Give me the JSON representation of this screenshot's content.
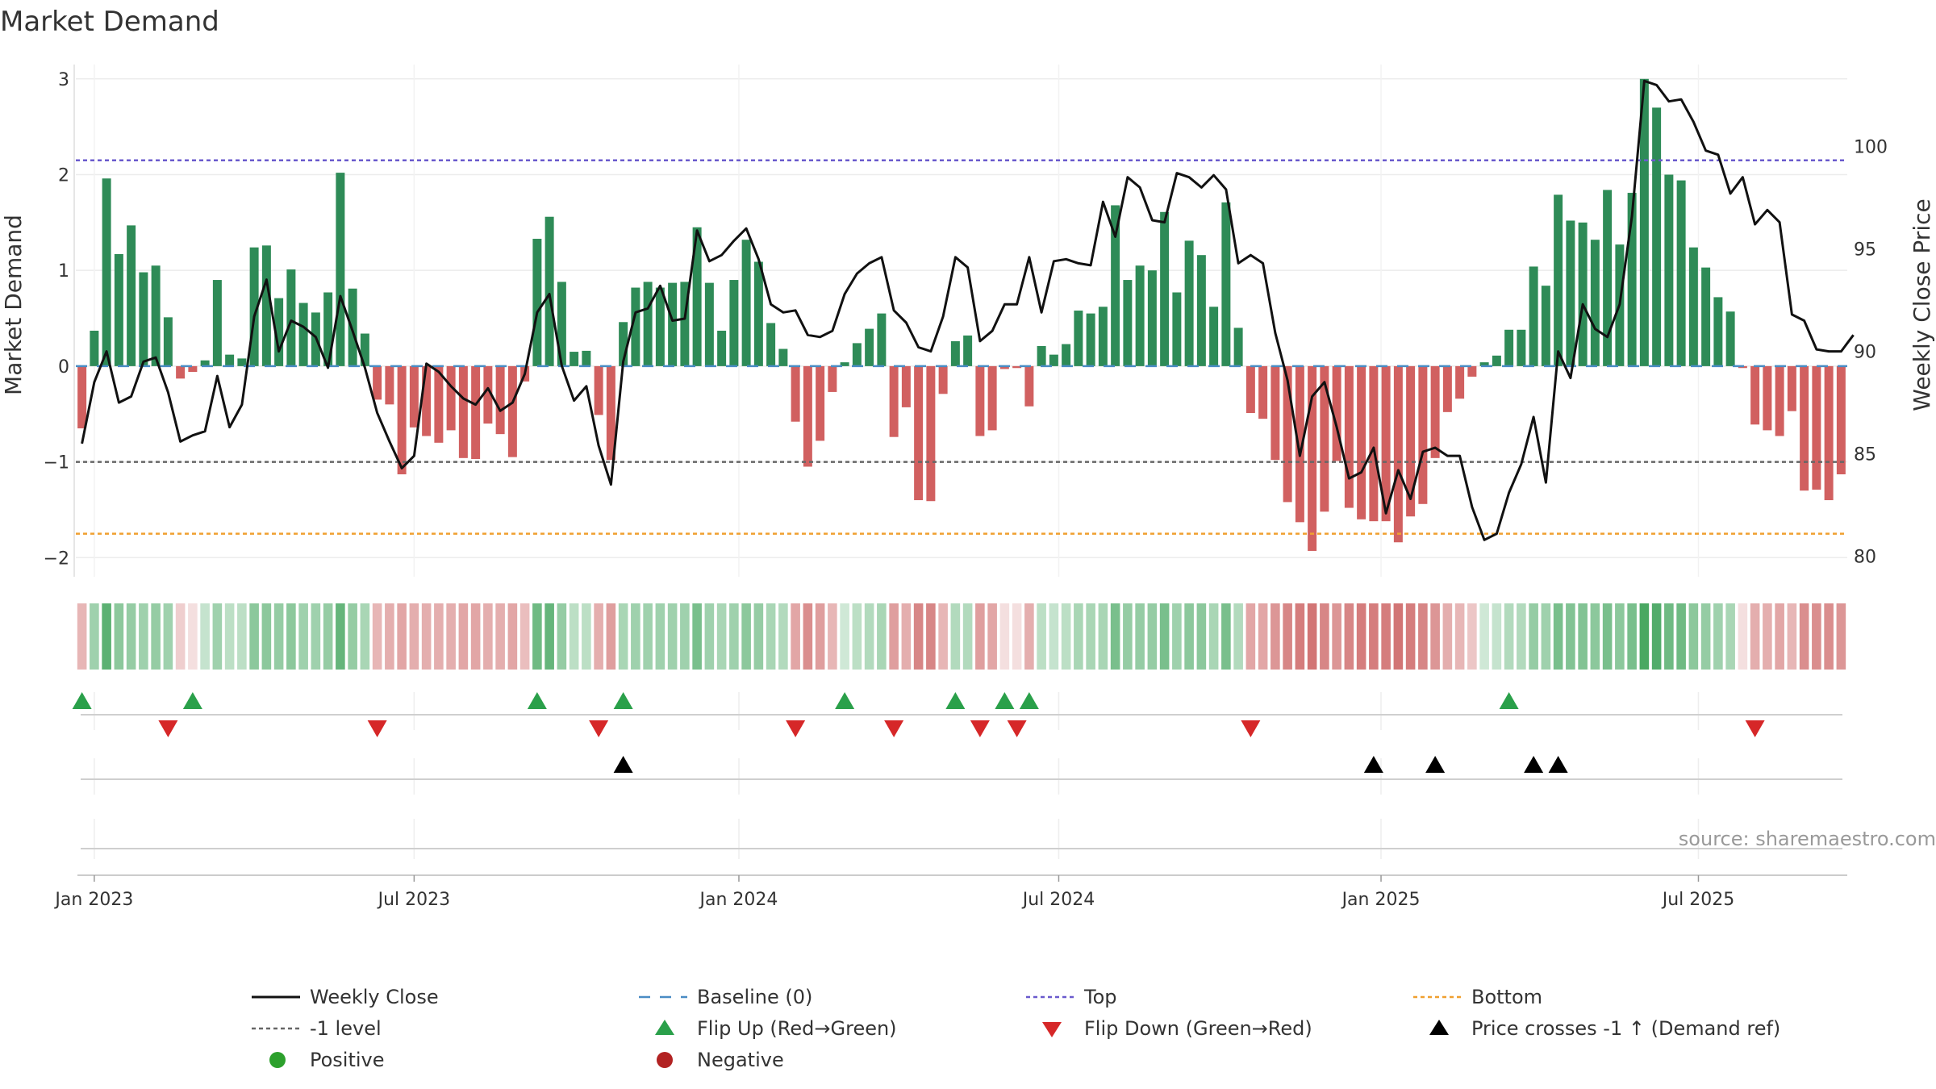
{
  "chart_data": {
    "type": "bar",
    "title": "Market Demand",
    "ylabel": "Market Demand",
    "y2label": "Weekly Close Price",
    "source_text": "source: sharemaestro.com",
    "ylim": [
      -2.2,
      3.15
    ],
    "y2lim": [
      79,
      104
    ],
    "yticks": [
      -2,
      -1,
      0,
      1,
      2,
      3
    ],
    "yticklabels": [
      "−2",
      "−1",
      "0",
      "1",
      "2",
      "3"
    ],
    "y2ticks": [
      80,
      85,
      90,
      95,
      100
    ],
    "xticks": [
      {
        "label": "Jan 2023",
        "index": 1
      },
      {
        "label": "Jul 2023",
        "index": 27
      },
      {
        "label": "Jan 2024",
        "index": 53.4
      },
      {
        "label": "Jul 2024",
        "index": 79.4
      },
      {
        "label": "Jan 2025",
        "index": 105.6
      },
      {
        "label": "Jul 2025",
        "index": 131.4
      }
    ],
    "reference_lines": {
      "top": 2.15,
      "minus_one": -1,
      "bottom": -1.75,
      "baseline": 0
    },
    "demand": [
      -0.65,
      0.37,
      1.96,
      1.17,
      1.47,
      0.98,
      1.05,
      0.51,
      -0.13,
      -0.06,
      0.06,
      0.9,
      0.12,
      0.08,
      1.24,
      1.26,
      0.71,
      1.01,
      0.66,
      0.56,
      0.77,
      2.02,
      0.81,
      0.34,
      -0.35,
      -0.4,
      -1.13,
      -0.64,
      -0.73,
      -0.8,
      -0.67,
      -0.96,
      -0.97,
      -0.6,
      -0.71,
      -0.95,
      -0.16,
      1.33,
      1.56,
      0.88,
      0.15,
      0.16,
      -0.51,
      -0.98,
      0.46,
      0.82,
      0.88,
      0.82,
      0.87,
      0.88,
      1.45,
      0.87,
      0.37,
      0.9,
      1.32,
      1.09,
      0.45,
      0.18,
      -0.58,
      -1.05,
      -0.78,
      -0.27,
      0.04,
      0.24,
      0.39,
      0.55,
      -0.74,
      -0.43,
      -1.4,
      -1.41,
      -0.29,
      0.26,
      0.32,
      -0.73,
      -0.67,
      -0.03,
      -0.02,
      -0.42,
      0.21,
      0.12,
      0.23,
      0.58,
      0.55,
      0.62,
      1.68,
      0.9,
      1.05,
      1.0,
      1.61,
      0.77,
      1.31,
      1.16,
      0.62,
      1.71,
      0.4,
      -0.49,
      -0.55,
      -0.98,
      -1.42,
      -1.63,
      -1.93,
      -1.52,
      -0.99,
      -1.48,
      -1.6,
      -1.62,
      -1.62,
      -1.84,
      -1.57,
      -1.44,
      -0.96,
      -0.48,
      -0.34,
      -0.11,
      0.04,
      0.11,
      0.38,
      0.38,
      1.04,
      0.84,
      1.79,
      1.52,
      1.5,
      1.32,
      1.84,
      1.27,
      1.81,
      3.0,
      2.7,
      2.0,
      1.94,
      1.24,
      1.03,
      0.72,
      0.57,
      -0.02,
      -0.61,
      -0.67,
      -0.73,
      -0.47,
      -1.3,
      -1.29,
      -1.4,
      -1.13
    ],
    "close": [
      85.5,
      88.5,
      90.0,
      87.5,
      87.8,
      89.5,
      89.7,
      88.0,
      85.6,
      85.9,
      86.1,
      88.8,
      86.3,
      87.4,
      91.7,
      93.5,
      90.0,
      91.5,
      91.2,
      90.7,
      89.2,
      92.7,
      91.0,
      89.2,
      87.0,
      85.6,
      84.3,
      84.9,
      89.4,
      89.0,
      88.3,
      87.7,
      87.4,
      88.2,
      87.1,
      87.5,
      88.9,
      91.9,
      92.8,
      89.3,
      87.6,
      88.3,
      85.4,
      83.5,
      89.5,
      91.9,
      92.1,
      93.2,
      91.5,
      91.6,
      95.9,
      94.4,
      94.7,
      95.4,
      96.0,
      94.5,
      92.3,
      91.9,
      92.0,
      90.8,
      90.7,
      91.0,
      92.8,
      93.8,
      94.3,
      94.6,
      92.0,
      91.4,
      90.2,
      90.0,
      91.7,
      94.6,
      94.1,
      90.5,
      91.0,
      92.3,
      92.3,
      94.6,
      91.9,
      94.4,
      94.5,
      94.3,
      94.2,
      97.3,
      95.6,
      98.5,
      98.0,
      96.4,
      96.3,
      98.7,
      98.5,
      98.0,
      98.6,
      97.9,
      94.3,
      94.7,
      94.3,
      90.9,
      88.6,
      84.9,
      87.8,
      88.5,
      86.3,
      83.8,
      84.1,
      85.3,
      82.1,
      84.2,
      82.8,
      85.1,
      85.3,
      84.9,
      84.9,
      82.4,
      80.8,
      81.1,
      83.1,
      84.5,
      86.8,
      83.6,
      90.0,
      88.7,
      92.3,
      91.1,
      90.7,
      92.3,
      96.6,
      103.2,
      103.0,
      102.2,
      102.3,
      101.2,
      99.8,
      99.6,
      97.7,
      98.5,
      96.2,
      96.9,
      96.3,
      91.8,
      91.5,
      90.1,
      90.0,
      90.0,
      90.8
    ],
    "heat_row_intensity": [
      0.45,
      0.5,
      0.85,
      0.6,
      0.55,
      0.5,
      0.55,
      0.5,
      0.3,
      0.2,
      0.3,
      0.5,
      0.35,
      0.35,
      0.6,
      0.6,
      0.55,
      0.6,
      0.5,
      0.5,
      0.55,
      0.8,
      0.55,
      0.45,
      0.45,
      0.5,
      0.55,
      0.5,
      0.5,
      0.5,
      0.5,
      0.55,
      0.55,
      0.5,
      0.5,
      0.55,
      0.4,
      0.75,
      0.8,
      0.55,
      0.35,
      0.35,
      0.5,
      0.6,
      0.45,
      0.5,
      0.5,
      0.5,
      0.5,
      0.5,
      0.7,
      0.5,
      0.45,
      0.5,
      0.6,
      0.55,
      0.45,
      0.4,
      0.55,
      0.7,
      0.6,
      0.45,
      0.25,
      0.35,
      0.4,
      0.45,
      0.6,
      0.5,
      0.75,
      0.75,
      0.45,
      0.4,
      0.4,
      0.6,
      0.55,
      0.2,
      0.2,
      0.5,
      0.35,
      0.3,
      0.35,
      0.45,
      0.45,
      0.45,
      0.7,
      0.55,
      0.55,
      0.55,
      0.7,
      0.5,
      0.6,
      0.6,
      0.45,
      0.7,
      0.4,
      0.55,
      0.55,
      0.65,
      0.75,
      0.8,
      0.85,
      0.75,
      0.65,
      0.75,
      0.8,
      0.8,
      0.8,
      0.85,
      0.8,
      0.75,
      0.65,
      0.5,
      0.45,
      0.35,
      0.25,
      0.3,
      0.4,
      0.4,
      0.55,
      0.5,
      0.7,
      0.65,
      0.65,
      0.6,
      0.7,
      0.6,
      0.7,
      0.95,
      0.9,
      0.75,
      0.75,
      0.6,
      0.55,
      0.5,
      0.45,
      0.2,
      0.5,
      0.5,
      0.55,
      0.45,
      0.7,
      0.7,
      0.7,
      0.65
    ],
    "flip_up_indices": [
      0,
      9,
      37,
      44,
      62,
      71,
      75,
      77,
      116
    ],
    "flip_down_indices": [
      7,
      24,
      42,
      58,
      66,
      73,
      76,
      95,
      136
    ],
    "price_cross_indices": [
      44,
      105,
      110,
      118,
      120
    ],
    "colors": {
      "positive_bar": "#2e8b57",
      "negative_bar": "#d16060",
      "price_line": "#111111",
      "top_line": "#6a5acd",
      "minus_one_line": "#666666",
      "bottom_line": "#f0a030",
      "baseline": "#4a8cc4",
      "flip_up": "#2aa04a",
      "flip_down": "#d62728",
      "price_cross": "#000000",
      "positive_dot": "#2ca02c",
      "negative_dot": "#b22222"
    },
    "legend": [
      {
        "label": "Weekly Close",
        "kind": "line-solid",
        "color_key": "price_line"
      },
      {
        "label": "Baseline (0)",
        "kind": "line-dash",
        "color_key": "baseline"
      },
      {
        "label": "Top",
        "kind": "line-dot",
        "color_key": "top_line"
      },
      {
        "label": "Bottom",
        "kind": "line-dot",
        "color_key": "bottom_line"
      },
      {
        "label": "-1 level",
        "kind": "line-dot",
        "color_key": "minus_one_line"
      },
      {
        "label": "Flip Up (Red→Green)",
        "kind": "tri-up",
        "color_key": "flip_up"
      },
      {
        "label": "Flip Down (Green→Red)",
        "kind": "tri-down",
        "color_key": "flip_down"
      },
      {
        "label": "Price crosses -1 ↑ (Demand ref)",
        "kind": "tri-up",
        "color_key": "price_cross"
      },
      {
        "label": "Positive",
        "kind": "dot",
        "color_key": "positive_dot"
      },
      {
        "label": "Negative",
        "kind": "dot",
        "color_key": "negative_dot"
      }
    ]
  }
}
